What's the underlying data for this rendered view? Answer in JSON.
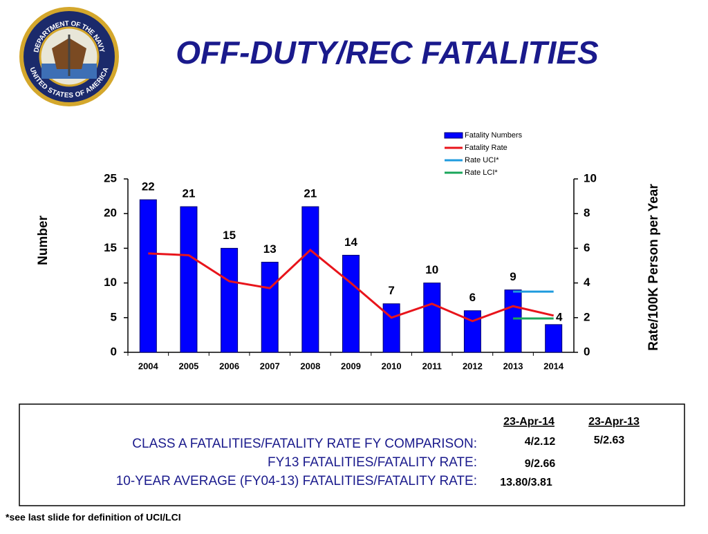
{
  "title": "OFF-DUTY/REC FATALITIES",
  "seal": {
    "top": "DEPARTMENT OF THE NAVY",
    "bottom": "UNITED STATES OF AMERICA"
  },
  "chart_data": {
    "type": "bar",
    "categories": [
      "2004",
      "2005",
      "2006",
      "2007",
      "2008",
      "2009",
      "2010",
      "2011",
      "2012",
      "2013",
      "2014"
    ],
    "series": [
      {
        "name": "Fatality Numbers",
        "type": "bar",
        "color": "#0000ff",
        "values": [
          22,
          21,
          15,
          13,
          21,
          14,
          7,
          10,
          6,
          9,
          4
        ]
      },
      {
        "name": "Fatality Rate",
        "type": "line",
        "axis": "y2",
        "color": "#e8141b",
        "values": [
          5.7,
          5.6,
          4.1,
          3.7,
          5.9,
          4.0,
          2.0,
          2.8,
          1.8,
          2.66,
          2.12
        ]
      },
      {
        "name": "Rate UCI*",
        "type": "line",
        "axis": "y2",
        "color": "#1f9bde",
        "values": [
          null,
          null,
          null,
          null,
          null,
          null,
          null,
          null,
          null,
          3.5,
          3.5
        ]
      },
      {
        "name": "Rate LCI*",
        "type": "line",
        "axis": "y2",
        "color": "#1aa65a",
        "values": [
          null,
          null,
          null,
          null,
          null,
          null,
          null,
          null,
          null,
          1.95,
          1.95
        ]
      }
    ],
    "y_label": "Number",
    "y2_label": "Rate/100K Person per Year",
    "ylim": [
      0,
      25
    ],
    "yticks": [
      0,
      5,
      10,
      15,
      20,
      25
    ],
    "y2lim": [
      0,
      10
    ],
    "y2ticks": [
      0,
      2,
      4,
      6,
      8,
      10
    ],
    "legend": "top-right",
    "grid": false
  },
  "comparison": {
    "headers": [
      "23-Apr-14",
      "23-Apr-13"
    ],
    "rows": [
      {
        "label": "CLASS A FATALITIES/FATALITY RATE FY COMPARISON:",
        "values": [
          "4/2.12",
          "5/2.63"
        ]
      },
      {
        "label": "FY13 FATALITIES/FATALITY RATE:",
        "values": [
          "9/2.66"
        ]
      },
      {
        "label": "10-YEAR AVERAGE (FY04-13) FATALITIES/FATALITY RATE:",
        "values": [
          "13.80/3.81"
        ]
      }
    ]
  },
  "footnote": "*see last slide for definition of UCI/LCI"
}
